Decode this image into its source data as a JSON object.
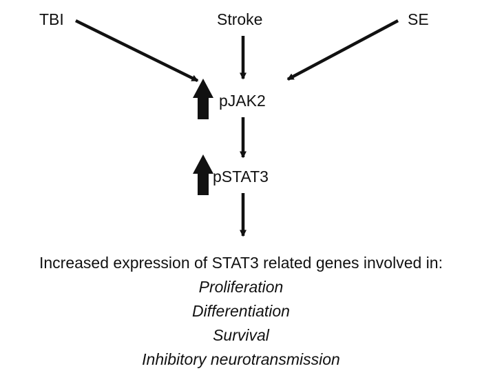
{
  "inputs": {
    "tbi": "TBI",
    "stroke": "Stroke",
    "se": "SE"
  },
  "nodes": {
    "pjak2": "pJAK2",
    "pstat3": "pSTAT3"
  },
  "outcome": {
    "heading": "Increased expression of STAT3 related genes involved in:",
    "items": [
      "Proliferation",
      "Differentiation",
      "Survival",
      "Inhibitory neurotransmission"
    ]
  }
}
